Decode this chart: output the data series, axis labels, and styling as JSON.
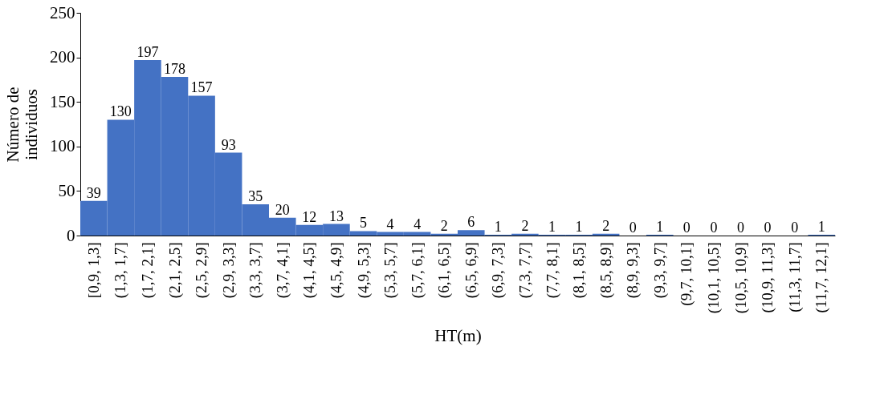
{
  "chart_data": {
    "type": "bar",
    "xlabel": "HT(m)",
    "ylabel": "Número de individuos",
    "categories": [
      "[0,9, 1,3]",
      "(1,3, 1,7]",
      "(1,7, 2,1]",
      "(2,1, 2,5]",
      "(2,5, 2,9]",
      "(2,9, 3,3]",
      "(3,3, 3,7]",
      "(3,7, 4,1]",
      "(4,1, 4,5]",
      "(4,5, 4,9]",
      "(4,9, 5,3]",
      "(5,3, 5,7]",
      "(5,7, 6,1]",
      "(6,1, 6,5]",
      "(6,5, 6,9]",
      "(6,9, 7,3]",
      "(7,3, 7,7]",
      "(7,7, 8,1]",
      "(8,1, 8,5]",
      "(8,5, 8,9]",
      "(8,9, 9,3]",
      "(9,3, 9,7]",
      "(9,7, 10,1]",
      "(10,1, 10,5]",
      "(10,5, 10,9]",
      "(10,9, 11,3]",
      "(11,3, 11,7]",
      "(11,7, 12,1]"
    ],
    "values": [
      39,
      130,
      197,
      178,
      157,
      93,
      35,
      20,
      12,
      13,
      5,
      4,
      4,
      2,
      6,
      1,
      2,
      1,
      1,
      2,
      0,
      1,
      0,
      0,
      0,
      0,
      0,
      1
    ],
    "color": "#4472c4",
    "ylim": [
      0,
      250
    ],
    "yticks": [
      0,
      50,
      100,
      150,
      200,
      250
    ],
    "data_labels": true,
    "grid": false
  }
}
